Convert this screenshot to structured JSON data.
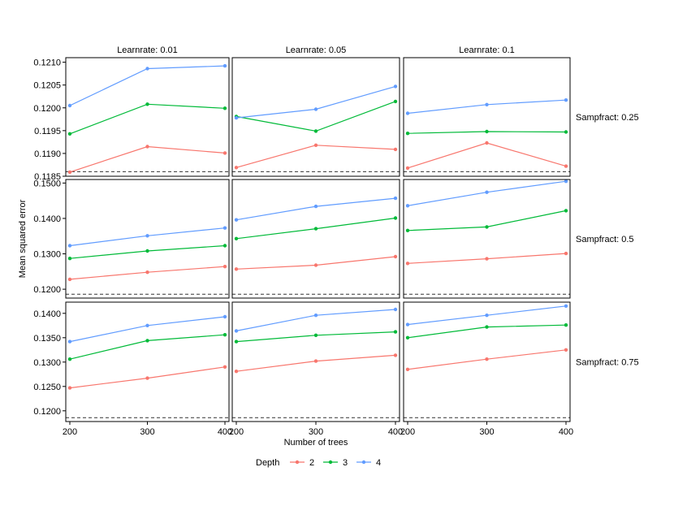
{
  "chart_data": {
    "type": "line",
    "facet_cols": {
      "labels": [
        "Learnrate: 0.01",
        "Learnrate: 0.05",
        "Learnrate: 0.1"
      ]
    },
    "facet_rows": {
      "labels": [
        "Sampfract: 0.25",
        "Sampfract: 0.5",
        "Sampfract: 0.75"
      ]
    },
    "xlabel": "Number of trees",
    "ylabel": "Mean squared error",
    "x": [
      200,
      300,
      400
    ],
    "xlim": [
      200,
      400
    ],
    "x_ticks": [
      "200",
      "300",
      "400"
    ],
    "legend": {
      "title": "Depth",
      "position": "bottom",
      "entries": [
        "2",
        "3",
        "4"
      ]
    },
    "series_colors": {
      "2": "#F8766D",
      "3": "#00BA38",
      "4": "#619CFF"
    },
    "rows": [
      {
        "ylim": [
          0.1185,
          0.1211
        ],
        "y_ticks": [
          "0.1185",
          "0.1190",
          "0.1195",
          "0.1200",
          "0.1205",
          "0.1210"
        ],
        "y_tick_values": [
          0.1185,
          0.119,
          0.1195,
          0.12,
          0.1205,
          0.121
        ],
        "reference_line": 0.1186
      },
      {
        "ylim": [
          0.1175,
          0.151
        ],
        "y_ticks": [
          "0.1200",
          "0.1300",
          "0.1400",
          "0.1500"
        ],
        "y_tick_values": [
          0.12,
          0.13,
          0.14,
          0.15
        ],
        "reference_line": 0.1186
      },
      {
        "ylim": [
          0.1178,
          0.1423
        ],
        "y_ticks": [
          "0.1200",
          "0.1250",
          "0.1300",
          "0.1350",
          "0.1400"
        ],
        "y_tick_values": [
          0.12,
          0.125,
          0.13,
          0.135,
          0.14
        ],
        "reference_line": 0.1186
      }
    ],
    "panels": [
      {
        "row": 0,
        "col": 0,
        "series": [
          {
            "name": "2",
            "values": [
              0.11859,
              0.11915,
              0.11901
            ]
          },
          {
            "name": "3",
            "values": [
              0.11943,
              0.12008,
              0.11999
            ]
          },
          {
            "name": "4",
            "values": [
              0.12005,
              0.12086,
              0.12092
            ]
          }
        ]
      },
      {
        "row": 0,
        "col": 1,
        "series": [
          {
            "name": "2",
            "values": [
              0.11869,
              0.11918,
              0.11909
            ]
          },
          {
            "name": "3",
            "values": [
              0.11981,
              0.11949,
              0.12014
            ]
          },
          {
            "name": "4",
            "values": [
              0.11978,
              0.11997,
              0.12047
            ]
          }
        ]
      },
      {
        "row": 0,
        "col": 2,
        "series": [
          {
            "name": "2",
            "values": [
              0.11868,
              0.11923,
              0.11872
            ]
          },
          {
            "name": "3",
            "values": [
              0.11944,
              0.11948,
              0.11947
            ]
          },
          {
            "name": "4",
            "values": [
              0.11988,
              0.12007,
              0.12017
            ]
          }
        ]
      },
      {
        "row": 1,
        "col": 0,
        "series": [
          {
            "name": "2",
            "values": [
              0.1228,
              0.1248,
              0.1264
            ]
          },
          {
            "name": "3",
            "values": [
              0.1287,
              0.1308,
              0.1323
            ]
          },
          {
            "name": "4",
            "values": [
              0.1323,
              0.1351,
              0.1373
            ]
          }
        ]
      },
      {
        "row": 1,
        "col": 1,
        "series": [
          {
            "name": "2",
            "values": [
              0.1257,
              0.1268,
              0.1292
            ]
          },
          {
            "name": "3",
            "values": [
              0.1343,
              0.1371,
              0.1401
            ]
          },
          {
            "name": "4",
            "values": [
              0.1396,
              0.1434,
              0.1457
            ]
          }
        ]
      },
      {
        "row": 1,
        "col": 2,
        "series": [
          {
            "name": "2",
            "values": [
              0.1273,
              0.1286,
              0.1301
            ]
          },
          {
            "name": "3",
            "values": [
              0.1366,
              0.1376,
              0.1422
            ]
          },
          {
            "name": "4",
            "values": [
              0.1436,
              0.1474,
              0.1505
            ]
          }
        ]
      },
      {
        "row": 2,
        "col": 0,
        "series": [
          {
            "name": "2",
            "values": [
              0.1247,
              0.1267,
              0.129
            ]
          },
          {
            "name": "3",
            "values": [
              0.1306,
              0.1344,
              0.1356
            ]
          },
          {
            "name": "4",
            "values": [
              0.1342,
              0.1375,
              0.1393
            ]
          }
        ]
      },
      {
        "row": 2,
        "col": 1,
        "series": [
          {
            "name": "2",
            "values": [
              0.1281,
              0.1302,
              0.1314
            ]
          },
          {
            "name": "3",
            "values": [
              0.1342,
              0.1355,
              0.1362
            ]
          },
          {
            "name": "4",
            "values": [
              0.1364,
              0.1396,
              0.1408
            ]
          }
        ]
      },
      {
        "row": 2,
        "col": 2,
        "series": [
          {
            "name": "2",
            "values": [
              0.1285,
              0.1306,
              0.1325
            ]
          },
          {
            "name": "3",
            "values": [
              0.135,
              0.1372,
              0.1376
            ]
          },
          {
            "name": "4",
            "values": [
              0.1377,
              0.1396,
              0.1415
            ]
          }
        ]
      }
    ],
    "grid": false
  }
}
